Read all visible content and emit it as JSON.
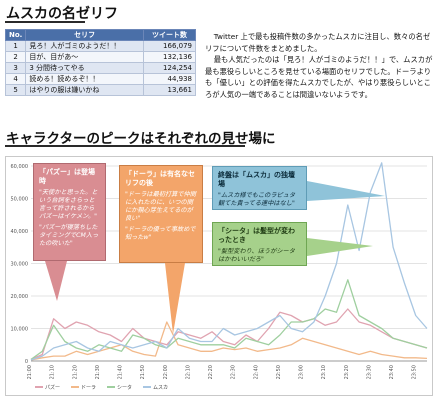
{
  "section1": {
    "title": "ムスカの名ゼリフ",
    "table": {
      "headers": [
        "No.",
        "セリフ",
        "ツイート数"
      ],
      "rows": [
        [
          "1",
          "見ろ！人がゴミのようだ！！",
          "166,079"
        ],
        [
          "2",
          "目が、目があ〜",
          "132,136"
        ],
        [
          "3",
          "3 分間待ってやる",
          "124,254"
        ],
        [
          "4",
          "読める！読めるぞ！！",
          "44,938"
        ],
        [
          "5",
          "はやりの服は嫌いかね",
          "13,661"
        ]
      ]
    },
    "paragraphs": [
      "Twitter 上で最も投稿件数の多かったムスカに注目し、数々の名ゼリフについて件数をまとめました。",
      "最も人気だったのは「見ろ！人がゴミのようだ！！」で、ムスカが最も悪役らしいところを見せている場面のセリフでした。ドーラよりも「優しい」との評価を得たムスカでしたが、やはり悪役らしいところが人気の一端であることは間違いないようです。"
    ]
  },
  "section2": {
    "title": "キャラクターのピークはそれぞれの見せ場に"
  },
  "annotations": [
    {
      "head": "「パズー」は登場時",
      "lines": [
        "\"天使かと思った。という台詞をさらっと言って許されるからパズーはイケメン。\"",
        "\"パズーが寝落ちしたタイミングでCM入ったの吹いた\""
      ]
    },
    {
      "head": "「ドーラ」は有名なセリフの後",
      "lines": [
        "\"ドーラは最初打算で仲間に入れたのに、いつの間にか親心芽生えてるのが良い\"",
        "\"ドーラの優って事故めで知ったw\""
      ]
    },
    {
      "head": "終盤は「ムスカ」の独壇場",
      "lines": [
        "\"ムスカ様でもこのラピュタ観てた貴ってる連中はなし\""
      ]
    },
    {
      "head": "「シータ」は髪型が変わったとき",
      "lines": [
        "\"髪型変わり、ほうがシータはかわいいだろ\""
      ]
    }
  ],
  "chart_data": {
    "type": "line",
    "x": [
      "21:00",
      "21:05",
      "21:10",
      "21:15",
      "21:20",
      "21:25",
      "21:30",
      "21:35",
      "21:40",
      "21:45",
      "21:50",
      "21:55",
      "22:00",
      "22:05",
      "22:10",
      "22:15",
      "22:20",
      "22:25",
      "22:30",
      "22:35",
      "22:40",
      "22:45",
      "22:50",
      "22:55",
      "23:00",
      "23:05",
      "23:10",
      "23:15",
      "23:20",
      "23:25",
      "23:30",
      "23:35",
      "23:40",
      "23:45",
      "23:50",
      "23:55"
    ],
    "ylim": [
      0,
      60000
    ],
    "yticks": [
      "0",
      "10,000",
      "20,000",
      "30,000",
      "40,000",
      "50,000",
      "60,000"
    ],
    "xlabels": [
      "21:00",
      "21:10",
      "21:20",
      "21:30",
      "21:40",
      "21:50",
      "22:00",
      "22:10",
      "22:20",
      "22:30",
      "22:40",
      "22:50",
      "23:00",
      "23:10",
      "23:20",
      "23:30",
      "23:40",
      "23:50"
    ],
    "grid": true,
    "legend_position": "bottom-left",
    "series": [
      {
        "name": "パズー",
        "color": "#e0a3b0",
        "values": [
          500,
          2000,
          13000,
          10000,
          12000,
          11000,
          9000,
          8000,
          6000,
          10000,
          7000,
          6000,
          5000,
          9000,
          8000,
          7000,
          9000,
          6000,
          5000,
          8000,
          6000,
          10000,
          15000,
          14000,
          12000,
          13000,
          11000,
          12000,
          16000,
          12000,
          11000,
          9000,
          7000,
          6000,
          5000,
          4000
        ]
      },
      {
        "name": "ドーラ",
        "color": "#f2b98a",
        "values": [
          300,
          1000,
          1500,
          1500,
          3000,
          2000,
          3000,
          4000,
          5000,
          3000,
          2000,
          1500,
          12000,
          5000,
          4000,
          3000,
          3000,
          4000,
          3500,
          4000,
          3000,
          3500,
          4000,
          5000,
          7000,
          6000,
          5000,
          4000,
          3000,
          2000,
          3000,
          2000,
          1500,
          1000,
          1000,
          800
        ]
      },
      {
        "name": "シータ",
        "color": "#9fcf9f",
        "values": [
          500,
          3000,
          11000,
          6000,
          4000,
          3000,
          5000,
          4000,
          3000,
          8000,
          7000,
          5000,
          4000,
          7000,
          6000,
          5000,
          5000,
          5000,
          4000,
          7000,
          6000,
          5000,
          8000,
          12000,
          12000,
          13000,
          16000,
          15000,
          25000,
          14000,
          12000,
          10000,
          7000,
          6000,
          5000,
          4000
        ]
      },
      {
        "name": "ムスカ",
        "color": "#a8c6e2",
        "values": [
          300,
          1500,
          4000,
          5000,
          6000,
          4000,
          3000,
          6000,
          5000,
          4000,
          5000,
          6000,
          4000,
          10000,
          7000,
          6000,
          6000,
          10000,
          8000,
          9000,
          10000,
          12000,
          14000,
          10000,
          9000,
          12000,
          20000,
          30000,
          48000,
          34000,
          52000,
          61000,
          35000,
          24000,
          14000,
          10000
        ]
      }
    ]
  }
}
